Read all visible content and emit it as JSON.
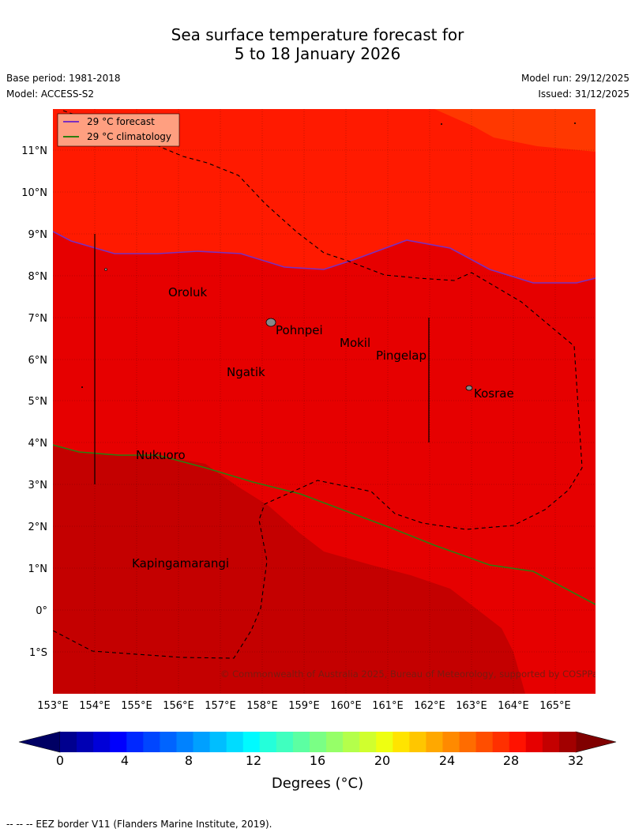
{
  "title_line1": "Sea surface temperature forecast for",
  "title_line2": "5 to 18 January 2026",
  "base_period": "Base period: 1981-2018",
  "model": "Model: ACCESS-S2",
  "model_run": "Model run: 29/12/2025",
  "issued": "Issued: 31/12/2025",
  "legend": {
    "forecast": "29 °C  forecast",
    "climatology": "29 °C  climatology",
    "forecast_color": "#7a2fbf",
    "climatology_color": "#2e7d0f"
  },
  "map": {
    "lon_labels": [
      "153°E",
      "154°E",
      "155°E",
      "156°E",
      "157°E",
      "158°E",
      "159°E",
      "160°E",
      "161°E",
      "162°E",
      "163°E",
      "164°E",
      "165°E"
    ],
    "lat_labels": [
      "11°N",
      "10°N",
      "9°N",
      "8°N",
      "7°N",
      "6°N",
      "5°N",
      "4°N",
      "3°N",
      "2°N",
      "1°N",
      "0°",
      "1°S"
    ],
    "places": {
      "oroluk": "Oroluk",
      "pohnpei": "Pohnpei",
      "mokil": "Mokil",
      "pingelap": "Pingelap",
      "ngatik": "Ngatik",
      "kosrae": "Kosrae",
      "nukuoro": "Nukuoro",
      "kapingamarangi": "Kapingamarangi"
    },
    "copyright": "© Commonwealth of Australia 2025, Bureau of Meteorology, supported by COSPPac",
    "colors": {
      "sst_29_30": "#ff1a00",
      "sst_30_31": "#e60000",
      "sst_31_32": "#c40000",
      "sst_28_29": "#ff3800"
    }
  },
  "colorbar": {
    "ticks": [
      "0",
      "4",
      "8",
      "12",
      "16",
      "20",
      "24",
      "28",
      "32"
    ],
    "label": "Degrees (°C)",
    "colors": [
      "#00008f",
      "#0000b4",
      "#0000d8",
      "#0000fd",
      "#0028ff",
      "#0046ff",
      "#0064ff",
      "#0082ff",
      "#00a0ff",
      "#00beff",
      "#00dcff",
      "#00faff",
      "#24ffda",
      "#40ffbf",
      "#5cffa2",
      "#7aff85",
      "#96ff68",
      "#b4ff4b",
      "#d0ff2e",
      "#eeff11",
      "#ffe400",
      "#ffc600",
      "#ffa800",
      "#ff8a00",
      "#ff6c00",
      "#ff4e00",
      "#ff3000",
      "#ff1200",
      "#e60000",
      "#c40000",
      "#a20000"
    ],
    "low_extend_color": "#000064",
    "high_extend_color": "#800000"
  },
  "footnote": "-- -- -- EEZ border V11 (Flanders Marine Institute, 2019)."
}
